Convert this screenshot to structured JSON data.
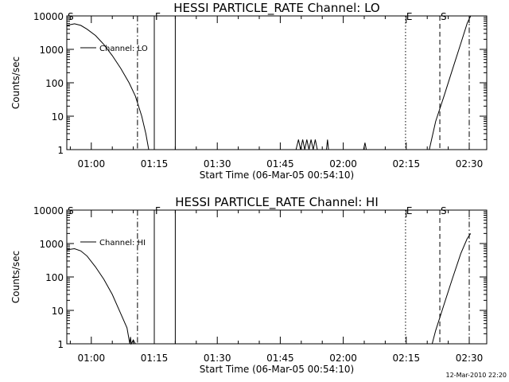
{
  "footer": {
    "timestamp": "12-Mar-2010 22:20"
  },
  "chart_data": [
    {
      "type": "line",
      "title": "HESSI PARTICLE_RATE Channel: LO",
      "xlabel": "Start Time (06-Mar-05 00:54:10)",
      "ylabel": "Counts/sec",
      "yscale": "log",
      "ylim": [
        1,
        10000
      ],
      "xlim": [
        "00:54:10",
        "02:34:10"
      ],
      "grid": false,
      "legend_position": "top-left",
      "x_tick_labels": [
        "01:00",
        "01:15",
        "01:30",
        "01:45",
        "02:00",
        "02:15",
        "02:30"
      ],
      "y_tick_labels": [
        "10000",
        "1000",
        "100",
        "10",
        "1"
      ],
      "series": [
        {
          "name": "Channel: LO",
          "points": [
            [
              "00:54:10",
              5200
            ],
            [
              "00:56:00",
              5800
            ],
            [
              "00:57:30",
              5200
            ],
            [
              "00:59:00",
              4000
            ],
            [
              "01:01:00",
              2600
            ],
            [
              "01:03:00",
              1400
            ],
            [
              "01:05:00",
              650
            ],
            [
              "01:07:00",
              270
            ],
            [
              "01:09:00",
              100
            ],
            [
              "01:10:30",
              40
            ],
            [
              "01:12:00",
              10
            ],
            [
              "01:13:00",
              3
            ],
            [
              "01:13:40",
              1
            ]
          ]
        },
        {
          "name": "Channel: LO",
          "points": [
            [
              "01:48:45",
              1
            ],
            [
              "01:49:20",
              2
            ],
            [
              "01:49:50",
              1
            ],
            [
              "01:50:20",
              2
            ],
            [
              "01:50:50",
              1
            ],
            [
              "01:51:20",
              2
            ],
            [
              "01:51:50",
              1
            ],
            [
              "01:52:20",
              2
            ],
            [
              "01:52:50",
              1
            ],
            [
              "01:53:20",
              2
            ],
            [
              "01:53:50",
              1
            ],
            [
              "01:54:40",
              1
            ]
          ]
        },
        {
          "name": "Channel: LO",
          "points": [
            [
              "01:56:00",
              1
            ],
            [
              "01:56:15",
              2
            ],
            [
              "01:56:30",
              1
            ]
          ]
        },
        {
          "name": "Channel: LO",
          "points": [
            [
              "02:04:50",
              1
            ],
            [
              "02:05:10",
              1.6
            ],
            [
              "02:05:30",
              1
            ]
          ]
        },
        {
          "name": "Channel: LO",
          "points": [
            [
              "02:20:30",
              1
            ],
            [
              "02:22:00",
              7
            ],
            [
              "02:24:00",
              40
            ],
            [
              "02:26:00",
              250
            ],
            [
              "02:28:00",
              1500
            ],
            [
              "02:29:30",
              6000
            ],
            [
              "02:30:20",
              10000
            ]
          ]
        }
      ],
      "markers": [
        {
          "label": "S",
          "time": "00:54:10",
          "style": "none"
        },
        {
          "label": "",
          "time": "01:11:00",
          "style": "dash-dot"
        },
        {
          "label": "F",
          "time": "01:15:00",
          "style": "solid"
        },
        {
          "label": "",
          "time": "01:20:00",
          "style": "solid"
        },
        {
          "label": "E",
          "time": "02:14:50",
          "style": "dotted"
        },
        {
          "label": "S",
          "time": "02:23:00",
          "style": "dashed"
        },
        {
          "label": "",
          "time": "02:30:00",
          "style": "dash-dot"
        }
      ]
    },
    {
      "type": "line",
      "title": "HESSI PARTICLE_RATE Channel: HI",
      "xlabel": "Start Time (06-Mar-05 00:54:10)",
      "ylabel": "Counts/sec",
      "yscale": "log",
      "ylim": [
        1,
        10000
      ],
      "xlim": [
        "00:54:10",
        "02:34:10"
      ],
      "grid": false,
      "legend_position": "top-left",
      "x_tick_labels": [
        "01:00",
        "01:15",
        "01:30",
        "01:45",
        "02:00",
        "02:15",
        "02:30"
      ],
      "y_tick_labels": [
        "10000",
        "1000",
        "100",
        "10",
        "1"
      ],
      "series": [
        {
          "name": "Channel: HI",
          "points": [
            [
              "00:54:10",
              650
            ],
            [
              "00:56:00",
              700
            ],
            [
              "00:57:30",
              600
            ],
            [
              "00:59:00",
              420
            ],
            [
              "01:01:00",
              200
            ],
            [
              "01:03:00",
              85
            ],
            [
              "01:05:00",
              30
            ],
            [
              "01:07:00",
              8
            ],
            [
              "01:08:30",
              3
            ],
            [
              "01:09:10",
              1
            ],
            [
              "01:09:20",
              1.6
            ],
            [
              "01:09:30",
              1
            ],
            [
              "01:10:00",
              1.3
            ],
            [
              "01:10:30",
              1
            ],
            [
              "01:11:00",
              1
            ]
          ]
        },
        {
          "name": "Channel: HI",
          "points": [
            [
              "02:21:10",
              1
            ],
            [
              "02:22:00",
              2.5
            ],
            [
              "02:24:00",
              15
            ],
            [
              "02:26:00",
              90
            ],
            [
              "02:28:00",
              500
            ],
            [
              "02:29:30",
              1400
            ],
            [
              "02:30:20",
              2000
            ]
          ]
        }
      ],
      "markers": [
        {
          "label": "S",
          "time": "00:54:10",
          "style": "none"
        },
        {
          "label": "",
          "time": "01:11:00",
          "style": "dash-dot"
        },
        {
          "label": "F",
          "time": "01:15:00",
          "style": "solid"
        },
        {
          "label": "",
          "time": "01:20:00",
          "style": "solid"
        },
        {
          "label": "E",
          "time": "02:14:50",
          "style": "dotted"
        },
        {
          "label": "S",
          "time": "02:23:00",
          "style": "dashed"
        },
        {
          "label": "",
          "time": "02:30:00",
          "style": "dash-dot"
        }
      ]
    }
  ]
}
